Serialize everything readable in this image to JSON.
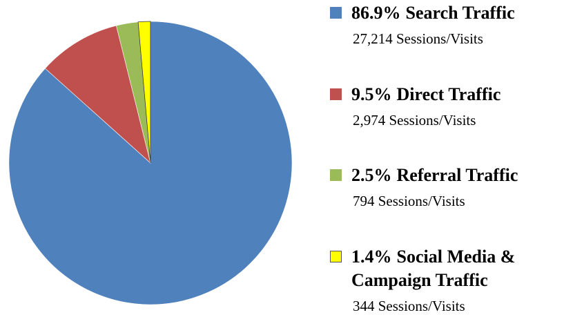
{
  "chart_data": {
    "type": "pie",
    "categories": [
      "Search Traffic",
      "Direct Traffic",
      "Referral Traffic",
      "Social Media & Campaign Traffic"
    ],
    "values": [
      86.9,
      9.5,
      2.5,
      1.4
    ],
    "value_labels": [
      "86.9%",
      "9.5%",
      "2.5%",
      "1.4%"
    ],
    "colors": [
      "#4f81bd",
      "#c0504d",
      "#9bbb59",
      "#ffff00"
    ],
    "sessions": [
      27214,
      2974,
      794,
      344
    ],
    "session_labels": [
      "27,214 Sessions/Visits",
      "2,974 Sessions/Visits",
      "794 Sessions/Visits",
      "344 Sessions/Visits"
    ]
  }
}
